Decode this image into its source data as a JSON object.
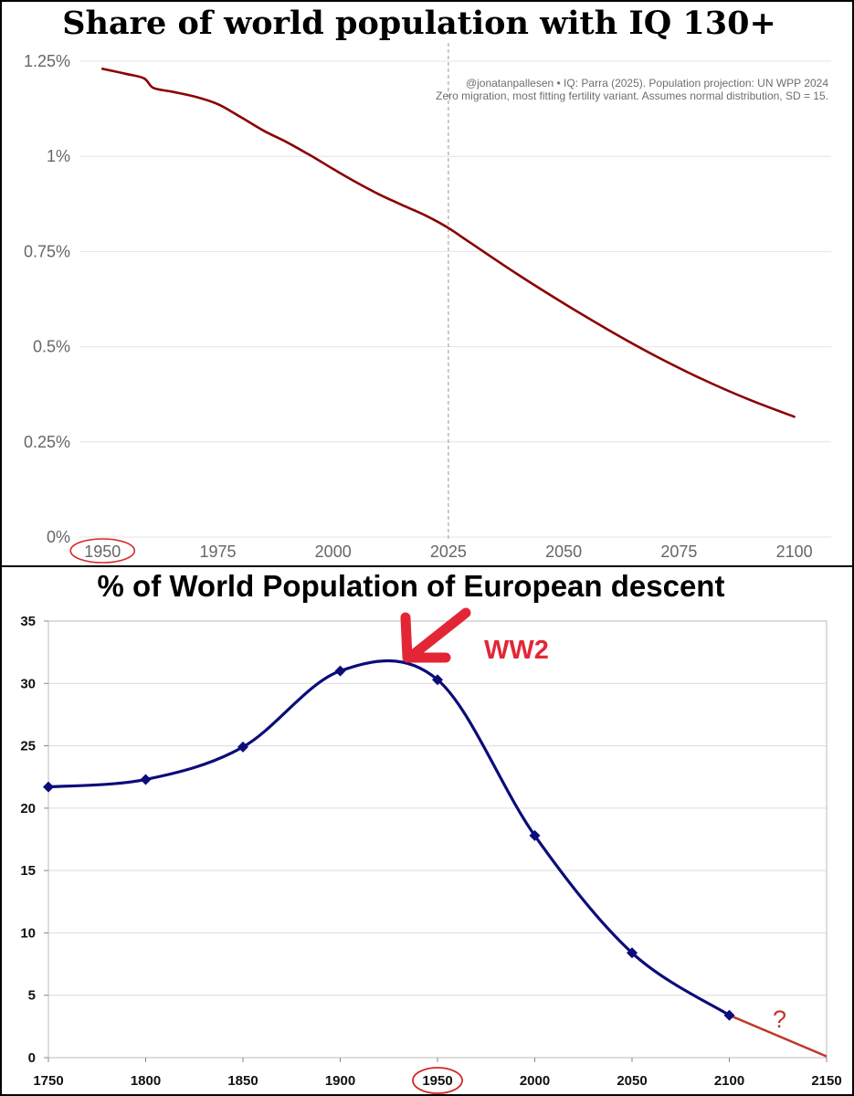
{
  "chart_data": [
    {
      "type": "line",
      "title": "Share of world population with IQ 130+",
      "xlabel": "",
      "ylabel": "",
      "x_ticks": [
        "1950",
        "1975",
        "2000",
        "2025",
        "2050",
        "2075",
        "2100"
      ],
      "y_ticks": [
        "0%",
        "0.25%",
        "0.5%",
        "0.75%",
        "1%",
        "1.25%"
      ],
      "xlim": [
        1945,
        2108
      ],
      "ylim": [
        0,
        1.25
      ],
      "grid": true,
      "highlighted_tick": "1950",
      "reference_line_x": 2025,
      "annotation_lines": [
        "@jonatanpallesen • IQ: Parra (2025). Population projection: UN WPP 2024",
        "Zero migration, most fitting fertility variant. Assumes normal distribution, SD = 15."
      ],
      "series": [
        {
          "name": "IQ 130+ share (%)",
          "color": "#8b0000",
          "x": [
            1950,
            1955,
            1959,
            1961,
            1965,
            1970,
            1975,
            1980,
            1985,
            1990,
            1995,
            2000,
            2005,
            2010,
            2015,
            2020,
            2025,
            2030,
            2040,
            2050,
            2060,
            2070,
            2080,
            2090,
            2100
          ],
          "y": [
            1.23,
            1.217,
            1.205,
            1.18,
            1.17,
            1.157,
            1.137,
            1.103,
            1.067,
            1.037,
            1.003,
            0.967,
            0.932,
            0.9,
            0.872,
            0.845,
            0.812,
            0.771,
            0.69,
            0.614,
            0.542,
            0.475,
            0.415,
            0.362,
            0.316
          ]
        }
      ]
    },
    {
      "type": "line",
      "title": "% of World Population of European descent",
      "xlabel": "",
      "ylabel": "",
      "x_ticks": [
        "1750",
        "1800",
        "1850",
        "1900",
        "1950",
        "2000",
        "2050",
        "2100",
        "2150"
      ],
      "y_ticks": [
        "0",
        "5",
        "10",
        "15",
        "20",
        "25",
        "30",
        "35"
      ],
      "xlim": [
        1750,
        2150
      ],
      "ylim": [
        0,
        35
      ],
      "grid": true,
      "highlighted_tick": "1950",
      "series": [
        {
          "name": "% of world population of European descent",
          "color": "#0c0c7a",
          "marker": "diamond",
          "x": [
            1750,
            1800,
            1850,
            1900,
            1950,
            2000,
            2050,
            2100
          ],
          "y": [
            21.7,
            22.3,
            24.9,
            31.0,
            30.3,
            17.8,
            8.4,
            3.4
          ]
        },
        {
          "name": "extrapolation",
          "color": "#c0392b",
          "x": [
            2100,
            2150
          ],
          "y": [
            3.4,
            0.1
          ]
        }
      ],
      "annotations": [
        {
          "text": "WW2",
          "color": "#e32636"
        },
        {
          "text": "?",
          "color": "#c0392b"
        }
      ]
    }
  ]
}
